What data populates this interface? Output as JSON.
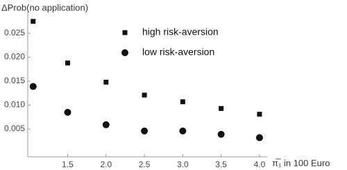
{
  "chart_data": {
    "type": "scatter",
    "y_label": "ΔProb(no application)",
    "x_label": "π̅₁ in 100 Euro",
    "x": [
      1.05,
      1.5,
      2.0,
      2.5,
      3.0,
      3.5,
      4.0
    ],
    "series": [
      {
        "name": "high risk-aversion",
        "marker": "square",
        "color": "#111111",
        "values": [
          0.0275,
          0.0188,
          0.0148,
          0.0121,
          0.0107,
          0.0093,
          0.0081
        ]
      },
      {
        "name": "low risk-aversion",
        "marker": "circle",
        "color": "#111111",
        "values": [
          0.0139,
          0.0085,
          0.0059,
          0.0046,
          0.0046,
          0.0039,
          0.0032
        ]
      }
    ],
    "xlim": [
      0.98,
      4.1
    ],
    "ylim": [
      -0.0008,
      0.0295
    ],
    "xticks": [
      {
        "value": 1.5,
        "label": "1.5"
      },
      {
        "value": 2,
        "label": "2.0"
      },
      {
        "value": 2.5,
        "label": "2.5"
      },
      {
        "value": 3,
        "label": "3.0"
      },
      {
        "value": 3.5,
        "label": "3.5"
      },
      {
        "value": 4,
        "label": "4.0"
      }
    ],
    "yticks": [
      {
        "value": 0.005,
        "label": "0.005"
      },
      {
        "value": 0.01,
        "label": "0.010"
      },
      {
        "value": 0.015,
        "label": "0.015"
      },
      {
        "value": 0.02,
        "label": "0.020"
      },
      {
        "value": 0.025,
        "label": "0.025"
      }
    ],
    "grid": false
  }
}
